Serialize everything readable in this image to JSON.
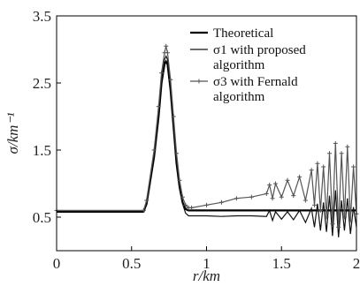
{
  "chart_data": {
    "type": "line",
    "xlabel": "r/km",
    "ylabel": "σ/km⁻¹",
    "xlim": [
      0,
      2
    ],
    "ylim": [
      0,
      3.5
    ],
    "x_ticks": [
      "0",
      "0.5",
      "1",
      "1.5",
      "2"
    ],
    "x_tick_values": [
      0,
      0.5,
      1,
      1.5,
      2
    ],
    "y_ticks": [
      "0.5",
      "1.5",
      "2.5",
      "3.5"
    ],
    "y_tick_values": [
      0.5,
      1.5,
      2.5,
      3.5
    ],
    "grid": false,
    "legend_position": "top-right",
    "series": [
      {
        "name": "Theoretical",
        "legend_lines": [
          "Theoretical"
        ],
        "color": "#000000",
        "marker": "none",
        "x": [
          0,
          0.58,
          0.6,
          0.65,
          0.68,
          0.7,
          0.72,
          0.73,
          0.74,
          0.76,
          0.78,
          0.8,
          0.82,
          0.84,
          0.86,
          0.88,
          0.9,
          1.0,
          1.5,
          2.0
        ],
        "y": [
          0.58,
          0.58,
          0.7,
          1.4,
          2.0,
          2.5,
          2.78,
          2.82,
          2.78,
          2.4,
          1.85,
          1.3,
          0.95,
          0.72,
          0.62,
          0.6,
          0.6,
          0.6,
          0.6,
          0.6
        ]
      },
      {
        "name": "σ1 with proposed algorithm",
        "legend_lines": [
          "σ1 with proposed",
          "algorithm"
        ],
        "color": "#111111",
        "marker": "none",
        "x": [
          0,
          0.58,
          0.6,
          0.65,
          0.68,
          0.7,
          0.72,
          0.73,
          0.74,
          0.76,
          0.78,
          0.8,
          0.82,
          0.84,
          0.86,
          0.88,
          0.9,
          1.0,
          1.1,
          1.2,
          1.3,
          1.4,
          1.42,
          1.44,
          1.46,
          1.5,
          1.54,
          1.58,
          1.62,
          1.66,
          1.7,
          1.72,
          1.74,
          1.76,
          1.78,
          1.8,
          1.82,
          1.84,
          1.86,
          1.88,
          1.9,
          1.92,
          1.94,
          1.96,
          1.98,
          2.0
        ],
        "y": [
          0.58,
          0.58,
          0.72,
          1.45,
          2.05,
          2.55,
          2.85,
          2.9,
          2.85,
          2.45,
          1.9,
          1.35,
          0.95,
          0.7,
          0.56,
          0.52,
          0.52,
          0.52,
          0.51,
          0.52,
          0.52,
          0.51,
          0.6,
          0.45,
          0.58,
          0.47,
          0.58,
          0.46,
          0.6,
          0.42,
          0.63,
          0.35,
          0.7,
          0.3,
          0.72,
          0.28,
          0.82,
          0.22,
          0.9,
          0.2,
          0.75,
          0.3,
          0.78,
          0.25,
          0.65,
          0.35
        ]
      },
      {
        "name": "σ3 with Fernald algorithm",
        "legend_lines": [
          "σ3 with Fernald",
          "algorithm"
        ],
        "color": "#555555",
        "marker": "plus",
        "x": [
          0,
          0.58,
          0.6,
          0.65,
          0.68,
          0.7,
          0.72,
          0.73,
          0.74,
          0.76,
          0.78,
          0.8,
          0.82,
          0.84,
          0.86,
          0.88,
          0.9,
          1.0,
          1.1,
          1.2,
          1.3,
          1.4,
          1.42,
          1.44,
          1.46,
          1.5,
          1.54,
          1.58,
          1.62,
          1.66,
          1.7,
          1.72,
          1.74,
          1.76,
          1.78,
          1.8,
          1.82,
          1.84,
          1.86,
          1.88,
          1.9,
          1.92,
          1.94,
          1.96,
          1.98,
          2.0
        ],
        "y": [
          0.6,
          0.6,
          0.75,
          1.5,
          2.15,
          2.65,
          2.95,
          3.05,
          2.95,
          2.55,
          2.0,
          1.45,
          1.05,
          0.8,
          0.68,
          0.64,
          0.64,
          0.68,
          0.72,
          0.78,
          0.8,
          0.85,
          0.98,
          0.78,
          1.0,
          0.8,
          1.05,
          0.82,
          1.1,
          0.75,
          1.2,
          0.68,
          1.3,
          0.6,
          1.25,
          0.5,
          1.45,
          0.4,
          1.6,
          0.35,
          1.45,
          0.5,
          1.55,
          0.45,
          1.25,
          0.55
        ]
      }
    ]
  }
}
